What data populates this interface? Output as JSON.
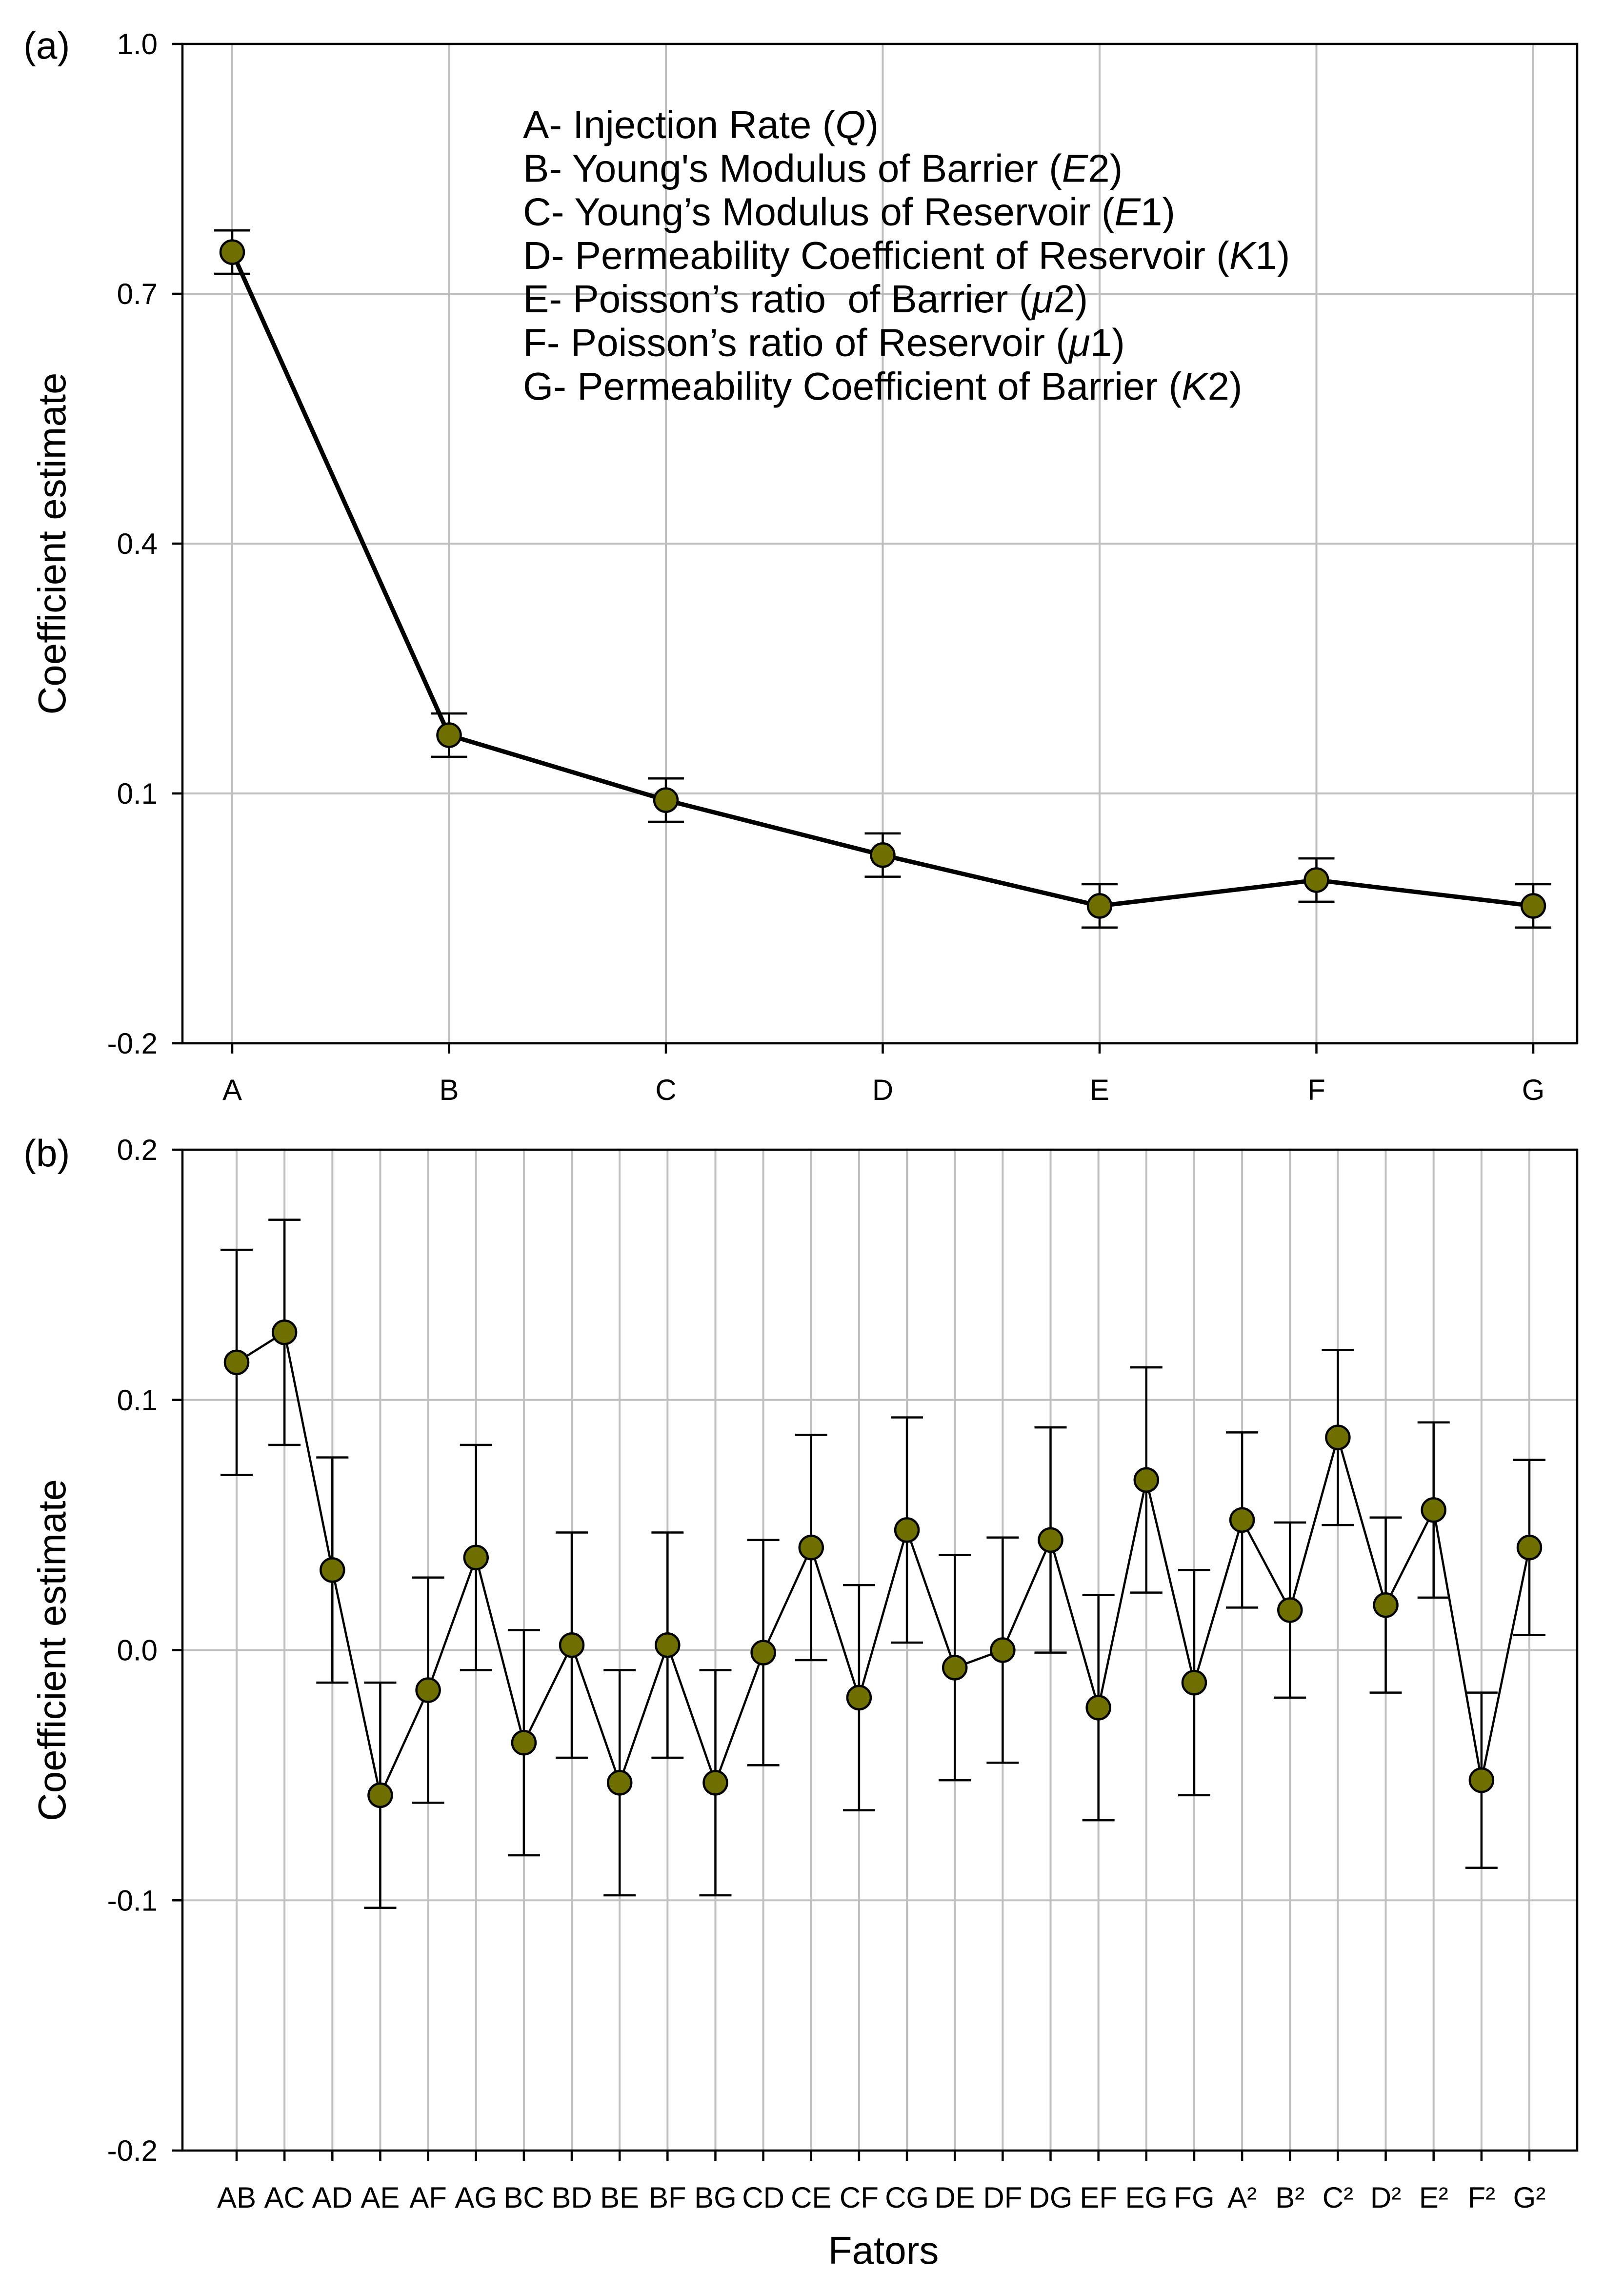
{
  "chart_data": [
    {
      "type": "line",
      "panel_label": "(a)",
      "categories": [
        "A",
        "B",
        "C",
        "D",
        "E",
        "F",
        "G"
      ],
      "values": [
        0.75,
        0.17,
        0.092,
        0.026,
        -0.035,
        -0.004,
        -0.035
      ],
      "errors": [
        0.026,
        0.026,
        0.026,
        0.026,
        0.026,
        0.026,
        0.026
      ],
      "ylim": [
        -0.2,
        1.0
      ],
      "yticks": [
        1.0,
        0.7,
        0.4,
        0.1,
        -0.2
      ],
      "ytick_labels": [
        "1.0",
        "0.7",
        "0.4",
        "0.1",
        "-0.2"
      ],
      "ylabel": "Coefficient estimate",
      "grid": true,
      "marker_color": "#6f6f00",
      "line_color": "#000000",
      "grid_color": "#c0c0c0",
      "annotations": [
        {
          "prefix": "A- Injection Rate (",
          "italic": "Q",
          "suffix": ")"
        },
        {
          "prefix": "B- Young's Modulus of Barrier (",
          "italic": "E",
          "suffix": "2)"
        },
        {
          "prefix": "C- Young’s Modulus of Reservoir (",
          "italic": "E",
          "suffix": "1)"
        },
        {
          "prefix": "D- Permeability Coefficient of Reservoir (",
          "italic": "K",
          "suffix": "1)"
        },
        {
          "prefix": "E- Poisson’s ratio  of Barrier (",
          "italic": "μ",
          "suffix": "2)"
        },
        {
          "prefix": "F- Poisson’s ratio of Reservoir (",
          "italic": "μ",
          "suffix": "1)"
        },
        {
          "prefix": "G- Permeability Coefficient of Barrier (",
          "italic": "K",
          "suffix": "2)"
        }
      ]
    },
    {
      "type": "line",
      "panel_label": "(b)",
      "categories": [
        "AB",
        "AC",
        "AD",
        "AE",
        "AF",
        "AG",
        "BC",
        "BD",
        "BE",
        "BF",
        "BG",
        "CD",
        "CE",
        "CF",
        "CG",
        "DE",
        "DF",
        "DG",
        "EF",
        "EG",
        "FG",
        "A²",
        "B²",
        "C²",
        "D²",
        "E²",
        "F²",
        "G²"
      ],
      "values": [
        0.115,
        0.127,
        0.032,
        -0.058,
        -0.016,
        0.037,
        -0.037,
        0.002,
        -0.053,
        0.002,
        -0.053,
        -0.001,
        0.041,
        -0.019,
        0.048,
        -0.007,
        0.0,
        0.044,
        -0.023,
        0.068,
        -0.013,
        0.052,
        0.016,
        0.085,
        0.018,
        0.056,
        -0.052,
        0.041
      ],
      "errors": [
        0.045,
        0.045,
        0.045,
        0.045,
        0.045,
        0.045,
        0.045,
        0.045,
        0.045,
        0.045,
        0.045,
        0.045,
        0.045,
        0.045,
        0.045,
        0.045,
        0.045,
        0.045,
        0.045,
        0.045,
        0.045,
        0.035,
        0.035,
        0.035,
        0.035,
        0.035,
        0.035,
        0.035
      ],
      "ylim": [
        -0.2,
        0.2
      ],
      "yticks": [
        0.2,
        0.1,
        0.0,
        -0.1,
        -0.2
      ],
      "ytick_labels": [
        "0.2",
        "0.1",
        "0.0",
        "-0.1",
        "-0.2"
      ],
      "ylabel": "Coefficient estimate",
      "xlabel": "Fators",
      "grid": true,
      "marker_color": "#6f6f00",
      "line_color": "#000000",
      "grid_color": "#c0c0c0"
    }
  ]
}
